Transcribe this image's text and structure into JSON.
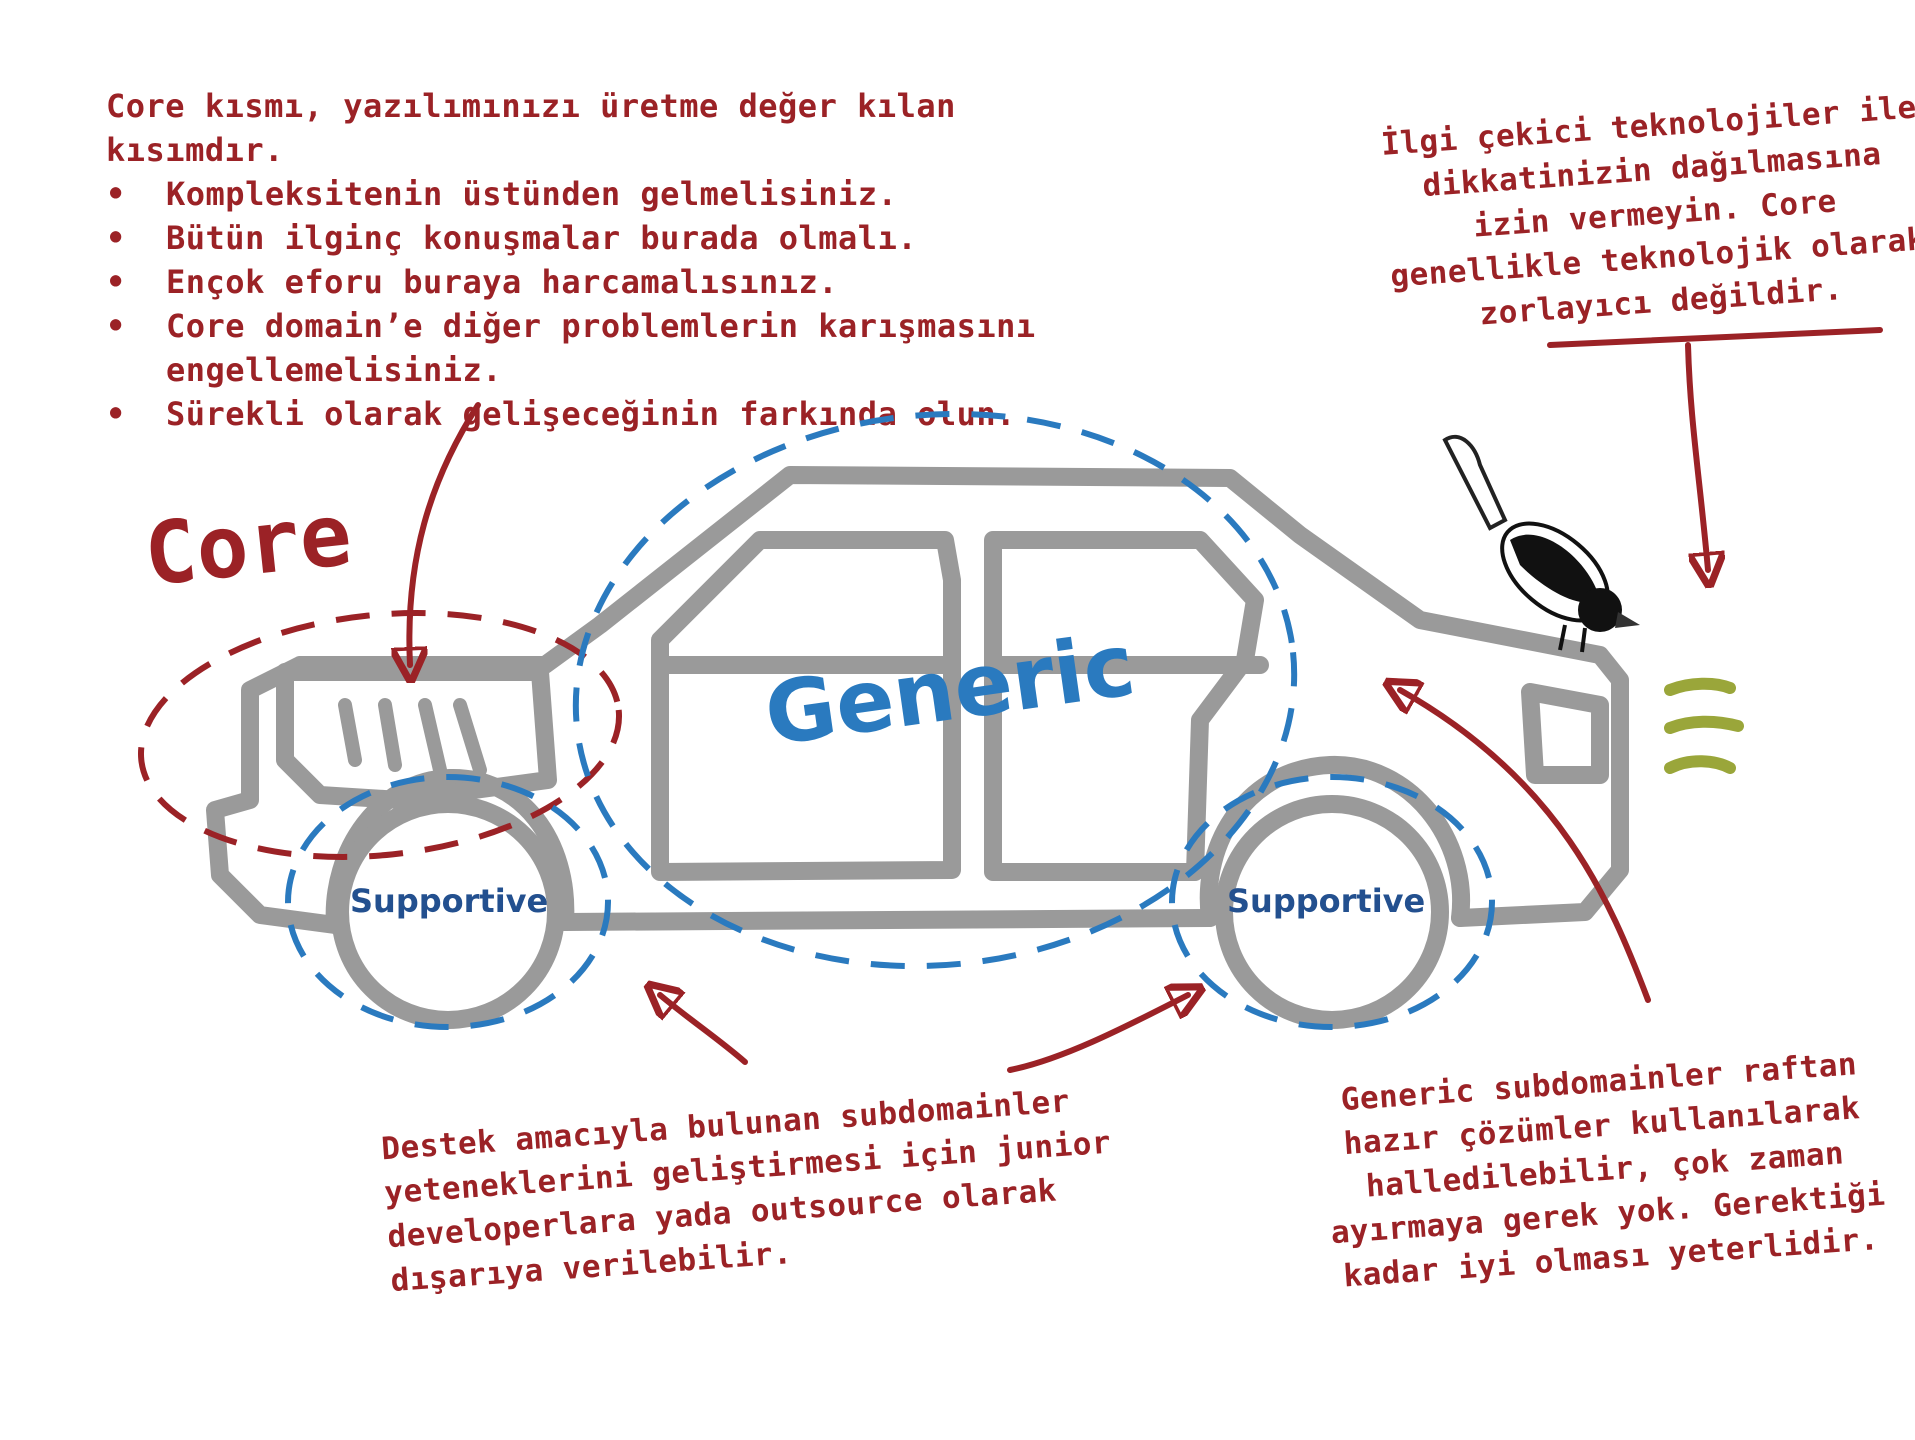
{
  "core_notes": {
    "lead": "Core kısmı, yazılımınızı üretme değer kılan kısımdır.",
    "bullets": [
      "Kompleksitenin üstünden gelmelisiniz.",
      "Bütün ilginç konuşmalar burada olmalı.",
      "Ençok eforu buraya harcamalısınız.",
      "Core domain’e diğer problemlerin karışmasını engellemelisiniz.",
      "Sürekli olarak gelişeceğinin farkında olun."
    ]
  },
  "tech_note": "İlgi çekici teknolojiler ile dikkatinizin dağılmasına izin vermeyin. Core genellikle teknolojik olarak zorlayıcı değildir.",
  "labels": {
    "core": "Core",
    "generic": "Generic",
    "supportive_left": "Supportive",
    "supportive_right": "Supportive"
  },
  "support_note": "Destek amacıyla bulunan subdomainler yeteneklerini geliştirmesi için junior developerlara yada outsource olarak dışarıya verilebilir.",
  "generic_note": "Generic subdomainler raftan hazır çözümler kullanılarak halledilebilir, çok zaman ayırmaya gerek yok. Gerektiği kadar iyi olması yeterlidir.",
  "colors": {
    "annotation_red": "#9b2226",
    "generic_blue": "#2a7abf",
    "supportive_blue": "#23508f",
    "car_gray": "#9a9a9a",
    "motion_lines": "#9aa63a"
  }
}
